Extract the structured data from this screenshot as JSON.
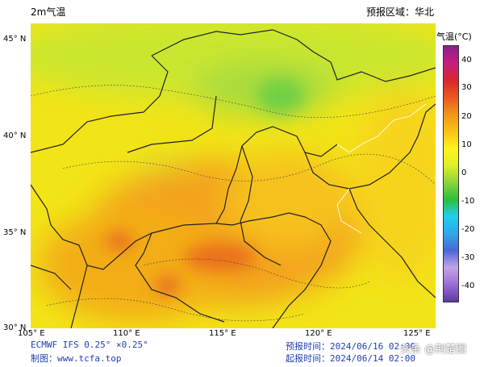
{
  "title": "2m气温",
  "region_label": "预报区域：华北",
  "legend": {
    "title": "气温(°C)",
    "ticks": [
      "40",
      "30",
      "20",
      "10",
      "0",
      "-10",
      "-20",
      "-30",
      "-40"
    ],
    "colors": [
      "#5a3b9e",
      "#9c6cd6",
      "#c3a4e6",
      "#4a66d9",
      "#2ea8e8",
      "#1fd0ee",
      "#2bbf3a",
      "#8fd43c",
      "#dff025",
      "#fff21a",
      "#f7c215",
      "#f29417",
      "#e95820",
      "#d9252e",
      "#c51e80",
      "#8b1e8c"
    ]
  },
  "axes": {
    "lat_ticks": [
      "45° N",
      "40° N",
      "35° N",
      "30° N"
    ],
    "lon_ticks": [
      "105° E",
      "110° E",
      "115° E",
      "120° E",
      "125° E"
    ]
  },
  "footer": {
    "model": "ECMWF IFS 0.25° ×0.25°",
    "maker": "制图：www.tcfa.top",
    "valid_label": "预报时间：2024/06/16 02:00",
    "issue_label": "起报时间：2024/06/14 02:00"
  },
  "watermark": "头条 @荆楚图"
}
